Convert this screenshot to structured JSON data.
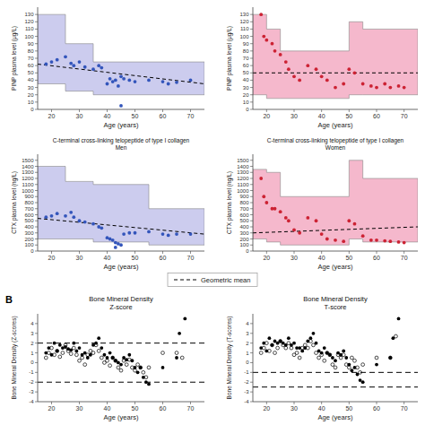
{
  "chart_data": [
    {
      "type": "scatter",
      "xlabel": "Age (years)",
      "ylabel": "PINP plasma level (μg/L)",
      "xlim": [
        15,
        75
      ],
      "xticks": [
        20,
        30,
        40,
        50,
        60,
        70
      ],
      "ylim": [
        0,
        140
      ],
      "yticks": [
        0,
        10,
        20,
        30,
        40,
        50,
        60,
        70,
        80,
        90,
        100,
        110,
        120,
        130
      ],
      "series": [
        {
          "type": "area",
          "line_style": "step",
          "color": "#CCCCEE",
          "x": [
            15,
            25,
            35,
            45,
            55,
            75
          ],
          "values": [
            130,
            90,
            65,
            65,
            65,
            65
          ],
          "low": [
            35,
            25,
            20,
            20,
            20,
            20
          ]
        },
        {
          "type": "line",
          "name": "Geometric mean",
          "line_style": "dashed",
          "color": "black",
          "x": [
            15,
            75
          ],
          "values": [
            62,
            35
          ]
        },
        {
          "type": "scatter",
          "marker": "circle",
          "color": "#3355BB",
          "x": [
            18,
            20,
            22,
            25,
            27,
            28,
            30,
            32,
            35,
            37,
            38,
            40,
            41,
            42,
            43,
            44,
            45,
            46,
            48,
            50,
            55,
            60,
            62,
            65,
            70
          ],
          "values": [
            62,
            65,
            68,
            72,
            63,
            60,
            65,
            58,
            55,
            60,
            57,
            35,
            42,
            38,
            40,
            32,
            45,
            42,
            40,
            38,
            40,
            38,
            35,
            37,
            40
          ]
        },
        {
          "type": "scatter",
          "marker": "circle",
          "color": "#3355BB",
          "x": [
            45
          ],
          "values": [
            5
          ]
        }
      ]
    },
    {
      "type": "scatter",
      "xlabel": "Age (years)",
      "ylabel": "PINP plasma level (μg/L)",
      "xlim": [
        15,
        75
      ],
      "xticks": [
        20,
        30,
        40,
        50,
        60,
        70
      ],
      "ylim": [
        0,
        140
      ],
      "yticks": [
        0,
        10,
        20,
        30,
        40,
        50,
        60,
        70,
        80,
        90,
        100,
        110,
        120,
        130
      ],
      "series": [
        {
          "type": "area",
          "line_style": "step",
          "color": "#F5B8CC",
          "x": [
            15,
            20,
            25,
            45,
            50,
            55,
            75
          ],
          "values": [
            130,
            110,
            80,
            80,
            120,
            110,
            110
          ],
          "low": [
            20,
            15,
            15,
            15,
            20,
            20,
            20
          ]
        },
        {
          "type": "line",
          "line_style": "dashed",
          "color": "black",
          "x": [
            15,
            75
          ],
          "values": [
            50,
            50
          ]
        },
        {
          "type": "scatter",
          "marker": "circle",
          "color": "#CC2233",
          "x": [
            18,
            19,
            20,
            22,
            23,
            25,
            27,
            28,
            30,
            32,
            35,
            38,
            40,
            42,
            45,
            48,
            50,
            52,
            55,
            58,
            60,
            63,
            65,
            68,
            70
          ],
          "values": [
            130,
            100,
            95,
            90,
            80,
            75,
            65,
            55,
            45,
            40,
            60,
            55,
            45,
            40,
            30,
            35,
            55,
            50,
            35,
            32,
            30,
            35,
            30,
            32,
            30
          ]
        }
      ]
    },
    {
      "type": "scatter",
      "title": "C-terminal cross-linking telopeptide of type I collagen\nMen",
      "xlabel": "Age (years)",
      "ylabel": "CTX plasma level (ng/L)",
      "xlim": [
        15,
        75
      ],
      "xticks": [
        20,
        30,
        40,
        50,
        60,
        70
      ],
      "ylim": [
        0,
        1600
      ],
      "yticks": [
        0,
        100,
        200,
        300,
        400,
        500,
        600,
        700,
        800,
        900,
        1000,
        1100,
        1200,
        1300,
        1400,
        1500
      ],
      "series": [
        {
          "type": "area",
          "line_style": "step",
          "color": "#CCCCEE",
          "x": [
            15,
            25,
            35,
            45,
            55,
            75
          ],
          "values": [
            1400,
            1150,
            1100,
            1100,
            700,
            700
          ],
          "low": [
            200,
            200,
            150,
            150,
            100,
            100
          ]
        },
        {
          "type": "line",
          "line_style": "dashed",
          "color": "black",
          "x": [
            15,
            75
          ],
          "values": [
            540,
            280
          ]
        },
        {
          "type": "scatter",
          "marker": "circle",
          "color": "#3355BB",
          "x": [
            18,
            20,
            22,
            25,
            27,
            28,
            30,
            32,
            35,
            37,
            38,
            40,
            41,
            42,
            43,
            44,
            45,
            46,
            48,
            50,
            55,
            60,
            62,
            65,
            70
          ],
          "values": [
            560,
            580,
            620,
            580,
            640,
            560,
            500,
            480,
            450,
            400,
            380,
            220,
            200,
            180,
            140,
            120,
            100,
            280,
            300,
            300,
            320,
            280,
            260,
            280,
            280
          ]
        },
        {
          "type": "scatter",
          "marker": "circle",
          "color": "#3355BB",
          "x": [
            43
          ],
          "values": [
            60
          ]
        }
      ]
    },
    {
      "type": "scatter",
      "title": "C-terminal cross-linking telopeptide of type I collagen\nWomen",
      "xlabel": "Age (years)",
      "ylabel": "CTX plasma level (ng/L)",
      "xlim": [
        15,
        75
      ],
      "xticks": [
        20,
        30,
        40,
        50,
        60,
        70
      ],
      "ylim": [
        0,
        1600
      ],
      "yticks": [
        0,
        100,
        200,
        300,
        400,
        500,
        600,
        700,
        800,
        900,
        1000,
        1100,
        1200,
        1300,
        1400,
        1500
      ],
      "series": [
        {
          "type": "area",
          "line_style": "step",
          "color": "#F5B8CC",
          "x": [
            15,
            20,
            25,
            45,
            50,
            55,
            75
          ],
          "values": [
            1350,
            1300,
            900,
            900,
            1500,
            1200,
            1200
          ],
          "low": [
            200,
            150,
            100,
            100,
            200,
            150,
            150
          ]
        },
        {
          "type": "line",
          "line_style": "dashed",
          "color": "black",
          "x": [
            15,
            75
          ],
          "values": [
            300,
            400
          ]
        },
        {
          "type": "scatter",
          "marker": "circle",
          "color": "#CC2233",
          "x": [
            18,
            19,
            20,
            22,
            23,
            25,
            27,
            28,
            30,
            32,
            35,
            38,
            40,
            42,
            45,
            48,
            50,
            52,
            55,
            58,
            60,
            63,
            65,
            68,
            70
          ],
          "values": [
            1200,
            900,
            800,
            700,
            700,
            650,
            550,
            500,
            350,
            300,
            550,
            500,
            280,
            200,
            180,
            160,
            500,
            450,
            250,
            180,
            180,
            170,
            160,
            150,
            140
          ]
        }
      ]
    },
    {
      "type": "scatter",
      "title": "Bone Mineral Density\nZ-score",
      "xlabel": "Age (years)",
      "ylabel": "Bone Mineral Density (Z-scores)",
      "annotations": [
        "B"
      ],
      "xlim": [
        15,
        75
      ],
      "xticks": [
        20,
        30,
        40,
        50,
        60,
        70
      ],
      "ylim": [
        -4,
        5
      ],
      "yticks": [
        -4,
        -3,
        -2,
        -1,
        0,
        1,
        2,
        3,
        4
      ],
      "series": [
        {
          "type": "scatter",
          "marker": "circle",
          "color": "black",
          "x": [
            18,
            19,
            20,
            21,
            22,
            23,
            24,
            25,
            26,
            27,
            28,
            29,
            30,
            31,
            32,
            33,
            34,
            35,
            36,
            37,
            38,
            39,
            40,
            41,
            42,
            43,
            44,
            45,
            46,
            47,
            48,
            49,
            50,
            51,
            52,
            53,
            54,
            55,
            60,
            65,
            66,
            68
          ],
          "values": [
            1.0,
            1.5,
            0.8,
            2.0,
            1.2,
            1.8,
            1.5,
            1.6,
            1.4,
            1.3,
            2.0,
            1.2,
            1.5,
            0.8,
            1.0,
            0.5,
            0.8,
            1.8,
            2.0,
            2.5,
            1.5,
            0.8,
            0.5,
            1.0,
            0.5,
            0.2,
            0.0,
            -0.2,
            0.5,
            0.3,
            0.8,
            0.2,
            -0.5,
            -1.0,
            -0.5,
            -1.5,
            -2.0,
            -2.2,
            -0.5,
            0.5,
            3.0,
            4.5
          ]
        },
        {
          "type": "scatter",
          "marker": "open_circle",
          "color": "black",
          "x": [
            18,
            19,
            20,
            21,
            22,
            23,
            24,
            25,
            26,
            27,
            28,
            29,
            30,
            31,
            32,
            33,
            34,
            35,
            36,
            37,
            38,
            39,
            40,
            41,
            42,
            43,
            44,
            45,
            46,
            47,
            48,
            49,
            50,
            51,
            52,
            53,
            54,
            55,
            60,
            65,
            67
          ],
          "values": [
            0.5,
            1.0,
            1.5,
            0.8,
            1.2,
            0.6,
            1.0,
            1.8,
            1.2,
            0.9,
            1.5,
            0.8,
            0.2,
            0.5,
            -0.2,
            0.8,
            1.2,
            1.0,
            1.8,
            1.2,
            0.5,
            0.0,
            0.2,
            -0.3,
            0.5,
            0.2,
            -0.5,
            -0.8,
            0.2,
            -0.2,
            0.3,
            -0.5,
            -0.8,
            -0.2,
            -0.5,
            -1.0,
            -1.5,
            -0.5,
            1.0,
            1.0,
            0.5
          ]
        },
        {
          "type": "hline",
          "line_style": "dashed",
          "color": "black",
          "values": [
            2.0,
            -2.0
          ]
        }
      ]
    },
    {
      "type": "scatter",
      "title": "Bone Mineral Density\nT-score",
      "xlabel": "Age (years)",
      "ylabel": "Bone Mineral Density (T-scores)",
      "xlim": [
        15,
        75
      ],
      "xticks": [
        20,
        30,
        40,
        50,
        60,
        70
      ],
      "ylim": [
        -4,
        5
      ],
      "yticks": [
        -4,
        -3,
        -2,
        -1,
        0,
        1,
        2,
        3,
        4
      ],
      "series": [
        {
          "type": "scatter",
          "marker": "circle",
          "color": "black",
          "x": [
            18,
            19,
            20,
            21,
            22,
            23,
            24,
            25,
            26,
            27,
            28,
            29,
            30,
            31,
            32,
            33,
            34,
            35,
            36,
            37,
            38,
            39,
            40,
            41,
            42,
            43,
            44,
            45,
            46,
            47,
            48,
            49,
            50,
            51,
            52,
            53,
            54,
            55,
            60,
            65,
            66,
            68
          ],
          "values": [
            1.5,
            2.0,
            1.2,
            2.5,
            1.8,
            2.2,
            2.0,
            2.2,
            2.0,
            1.8,
            2.5,
            1.8,
            2.0,
            1.5,
            1.5,
            1.2,
            1.5,
            2.2,
            2.5,
            3.0,
            2.0,
            1.2,
            1.0,
            1.5,
            1.0,
            0.8,
            0.5,
            0.2,
            1.0,
            0.8,
            1.2,
            0.5,
            -0.2,
            -0.8,
            -0.5,
            -1.2,
            -1.8,
            -2.0,
            -0.2,
            0.5,
            2.5,
            4.5
          ]
        },
        {
          "type": "scatter",
          "marker": "open_circle",
          "color": "black",
          "x": [
            18,
            19,
            20,
            21,
            22,
            23,
            24,
            25,
            26,
            27,
            28,
            29,
            30,
            31,
            32,
            33,
            34,
            35,
            36,
            37,
            38,
            39,
            40,
            41,
            42,
            43,
            44,
            45,
            46,
            47,
            48,
            49,
            50,
            51,
            52,
            53,
            54,
            55,
            60,
            65,
            67
          ],
          "values": [
            1.0,
            1.5,
            2.0,
            1.2,
            1.8,
            1.0,
            1.5,
            2.2,
            1.8,
            1.5,
            2.0,
            1.5,
            0.8,
            1.0,
            0.5,
            1.5,
            1.8,
            1.5,
            2.2,
            1.8,
            1.0,
            0.5,
            0.8,
            0.2,
            1.0,
            0.8,
            -0.2,
            -0.5,
            0.8,
            0.5,
            0.8,
            -0.2,
            -0.5,
            0.5,
            0.2,
            -0.5,
            -1.0,
            -0.2,
            0.5,
            0.5,
            2.7
          ]
        },
        {
          "type": "hline",
          "line_style": "dashed",
          "color": "black",
          "values": [
            -1.0,
            -2.5
          ]
        }
      ]
    }
  ]
}
